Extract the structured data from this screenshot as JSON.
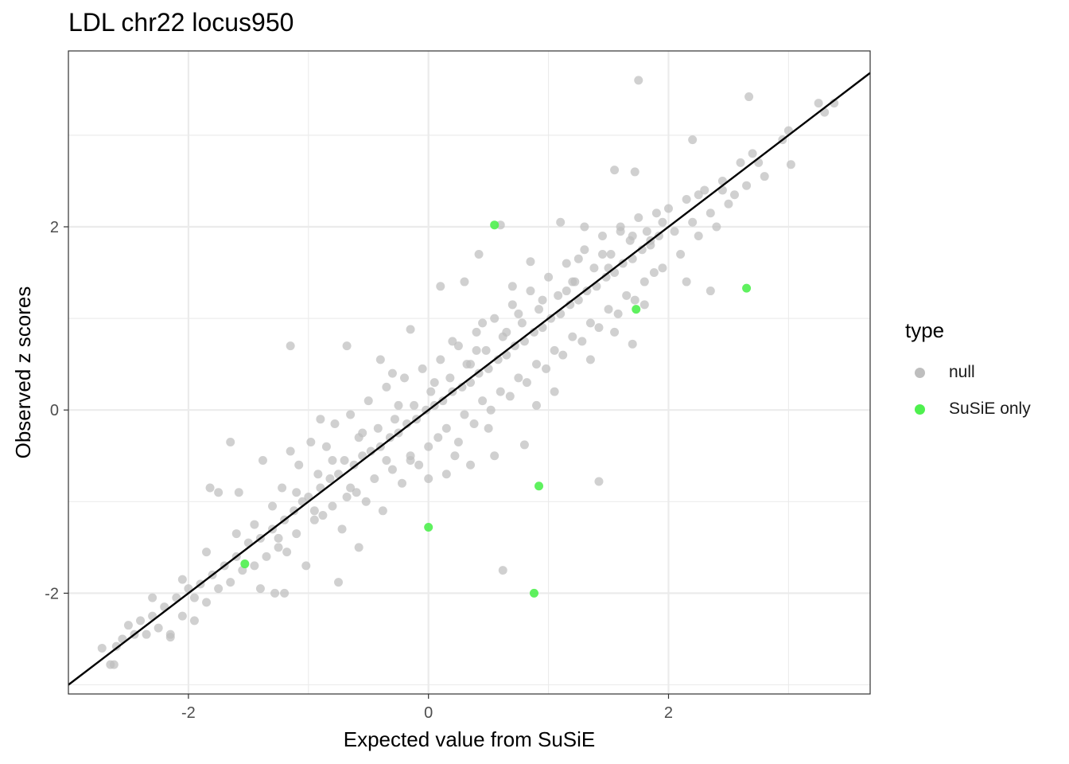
{
  "chart_data": {
    "type": "scatter",
    "title": "LDL chr22 locus950",
    "xlabel": "Expected value from SuSiE",
    "ylabel": "Observed z scores",
    "xlim": [
      -3.0,
      3.68
    ],
    "ylim": [
      -3.1,
      3.92
    ],
    "x_ticks": [
      -2,
      0,
      2
    ],
    "y_ticks": [
      -2,
      0,
      2
    ],
    "grid": true,
    "reference_line": {
      "slope": 1,
      "intercept": 0,
      "color": "#000000"
    },
    "legend": {
      "title": "type",
      "position": "right",
      "items": [
        {
          "label": "null",
          "color": "#bebebe"
        },
        {
          "label": "SuSiE only",
          "color": "#4ef04e"
        }
      ]
    },
    "series": [
      {
        "name": "null",
        "color": "#bebebe",
        "points": [
          [
            -2.72,
            -2.6
          ],
          [
            -2.65,
            -2.78
          ],
          [
            -2.62,
            -2.78
          ],
          [
            -2.6,
            -2.58
          ],
          [
            -2.55,
            -2.5
          ],
          [
            -2.45,
            -2.45
          ],
          [
            -2.4,
            -2.3
          ],
          [
            -2.35,
            -2.45
          ],
          [
            -2.3,
            -2.25
          ],
          [
            -2.25,
            -2.38
          ],
          [
            -2.2,
            -2.15
          ],
          [
            -2.15,
            -2.45
          ],
          [
            -2.1,
            -2.05
          ],
          [
            -2.05,
            -2.25
          ],
          [
            -2.0,
            -1.95
          ],
          [
            -1.95,
            -2.3
          ],
          [
            -1.9,
            -1.9
          ],
          [
            -1.85,
            -2.1
          ],
          [
            -1.8,
            -1.8
          ],
          [
            -1.75,
            -1.95
          ],
          [
            -1.7,
            -1.7
          ],
          [
            -1.65,
            -1.88
          ],
          [
            -1.6,
            -1.6
          ],
          [
            -1.58,
            -0.9
          ],
          [
            -1.55,
            -1.75
          ],
          [
            -1.5,
            -1.45
          ],
          [
            -1.45,
            -1.7
          ],
          [
            -1.4,
            -1.4
          ],
          [
            -1.38,
            -0.55
          ],
          [
            -1.35,
            -1.6
          ],
          [
            -1.3,
            -1.3
          ],
          [
            -1.28,
            -2.0
          ],
          [
            -1.25,
            -1.5
          ],
          [
            -1.22,
            -0.85
          ],
          [
            -1.2,
            -1.2
          ],
          [
            -1.18,
            -1.55
          ],
          [
            -1.15,
            -0.45
          ],
          [
            -1.12,
            -1.1
          ],
          [
            -1.1,
            -1.35
          ],
          [
            -1.08,
            -0.6
          ],
          [
            -1.05,
            -1.0
          ],
          [
            -1.02,
            -1.7
          ],
          [
            -1.0,
            -0.95
          ],
          [
            -0.98,
            -0.35
          ],
          [
            -0.95,
            -1.2
          ],
          [
            -0.92,
            -0.7
          ],
          [
            -0.9,
            -0.85
          ],
          [
            -0.88,
            -1.15
          ],
          [
            -0.85,
            -0.4
          ],
          [
            -0.82,
            -0.75
          ],
          [
            -0.8,
            -1.05
          ],
          [
            -0.78,
            -0.15
          ],
          [
            -0.75,
            -0.7
          ],
          [
            -0.72,
            -1.3
          ],
          [
            -0.7,
            -0.55
          ],
          [
            -0.68,
            -0.95
          ],
          [
            -0.65,
            -0.05
          ],
          [
            -0.62,
            -0.6
          ],
          [
            -0.6,
            -0.9
          ],
          [
            -0.58,
            -0.3
          ],
          [
            -0.55,
            -0.5
          ],
          [
            -0.52,
            -1.0
          ],
          [
            -0.5,
            0.1
          ],
          [
            -0.48,
            -0.45
          ],
          [
            -0.45,
            -0.75
          ],
          [
            -0.42,
            -0.2
          ],
          [
            -0.4,
            -0.4
          ],
          [
            -0.38,
            -1.1
          ],
          [
            -0.35,
            0.25
          ],
          [
            -0.32,
            -0.3
          ],
          [
            -0.3,
            -0.65
          ],
          [
            -0.28,
            -0.1
          ],
          [
            -0.25,
            -0.25
          ],
          [
            -0.22,
            -0.8
          ],
          [
            -0.2,
            0.35
          ],
          [
            -0.18,
            -0.15
          ],
          [
            -0.15,
            -0.5
          ],
          [
            -0.12,
            0.05
          ],
          [
            -0.1,
            -0.1
          ],
          [
            -0.08,
            -0.6
          ],
          [
            -0.05,
            0.45
          ],
          [
            -0.02,
            0.0
          ],
          [
            0.0,
            -0.4
          ],
          [
            0.02,
            0.2
          ],
          [
            0.05,
            0.05
          ],
          [
            0.08,
            -0.3
          ],
          [
            0.1,
            0.55
          ],
          [
            0.12,
            0.1
          ],
          [
            0.15,
            -0.2
          ],
          [
            0.18,
            0.35
          ],
          [
            0.2,
            0.2
          ],
          [
            0.22,
            -0.5
          ],
          [
            0.25,
            0.7
          ],
          [
            0.28,
            0.25
          ],
          [
            0.3,
            -0.05
          ],
          [
            0.32,
            0.5
          ],
          [
            0.35,
            0.3
          ],
          [
            0.38,
            -0.15
          ],
          [
            0.4,
            0.85
          ],
          [
            0.42,
            0.4
          ],
          [
            0.45,
            0.1
          ],
          [
            0.48,
            0.65
          ],
          [
            0.5,
            0.45
          ],
          [
            0.52,
            0.0
          ],
          [
            0.55,
            1.0
          ],
          [
            0.58,
            0.55
          ],
          [
            0.6,
            0.2
          ],
          [
            0.62,
            0.8
          ],
          [
            0.65,
            0.6
          ],
          [
            0.68,
            0.15
          ],
          [
            0.7,
            1.15
          ],
          [
            0.72,
            0.7
          ],
          [
            0.75,
            0.35
          ],
          [
            0.78,
            0.95
          ],
          [
            0.8,
            0.75
          ],
          [
            0.82,
            0.3
          ],
          [
            0.85,
            1.3
          ],
          [
            0.88,
            0.85
          ],
          [
            0.9,
            0.5
          ],
          [
            0.92,
            1.1
          ],
          [
            0.95,
            0.9
          ],
          [
            0.98,
            0.45
          ],
          [
            1.0,
            1.45
          ],
          [
            1.02,
            1.0
          ],
          [
            1.05,
            0.65
          ],
          [
            1.08,
            1.25
          ],
          [
            1.1,
            1.05
          ],
          [
            1.12,
            0.6
          ],
          [
            1.15,
            1.6
          ],
          [
            1.18,
            1.15
          ],
          [
            1.2,
            0.8
          ],
          [
            1.22,
            1.4
          ],
          [
            1.25,
            1.2
          ],
          [
            1.28,
            0.75
          ],
          [
            1.3,
            1.75
          ],
          [
            1.32,
            1.3
          ],
          [
            1.35,
            0.95
          ],
          [
            1.38,
            1.55
          ],
          [
            1.4,
            1.35
          ],
          [
            1.42,
            0.9
          ],
          [
            1.45,
            1.9
          ],
          [
            1.48,
            1.45
          ],
          [
            1.5,
            1.1
          ],
          [
            1.52,
            1.7
          ],
          [
            1.55,
            1.5
          ],
          [
            1.58,
            1.05
          ],
          [
            1.6,
            2.0
          ],
          [
            1.62,
            1.6
          ],
          [
            1.65,
            1.25
          ],
          [
            1.68,
            1.85
          ],
          [
            1.7,
            1.65
          ],
          [
            1.72,
            1.2
          ],
          [
            1.75,
            2.1
          ],
          [
            1.78,
            1.75
          ],
          [
            1.8,
            1.4
          ],
          [
            1.82,
            1.95
          ],
          [
            1.85,
            1.8
          ],
          [
            1.88,
            1.5
          ],
          [
            1.9,
            2.15
          ],
          [
            1.92,
            1.9
          ],
          [
            1.95,
            1.55
          ],
          [
            2.0,
            2.2
          ],
          [
            2.05,
            1.95
          ],
          [
            2.1,
            1.7
          ],
          [
            2.15,
            2.3
          ],
          [
            2.2,
            2.05
          ],
          [
            2.25,
            1.9
          ],
          [
            2.3,
            2.4
          ],
          [
            2.35,
            2.15
          ],
          [
            2.4,
            2.0
          ],
          [
            2.45,
            2.5
          ],
          [
            2.5,
            2.25
          ],
          [
            2.55,
            2.35
          ],
          [
            2.6,
            2.7
          ],
          [
            2.65,
            2.45
          ],
          [
            2.7,
            2.8
          ],
          [
            2.75,
            2.7
          ],
          [
            2.8,
            2.55
          ],
          [
            2.95,
            2.95
          ],
          [
            3.0,
            3.05
          ],
          [
            3.02,
            2.68
          ],
          [
            3.25,
            3.35
          ],
          [
            3.3,
            3.25
          ],
          [
            3.38,
            3.35
          ],
          [
            1.75,
            3.6
          ],
          [
            2.67,
            3.42
          ],
          [
            2.2,
            2.95
          ],
          [
            1.55,
            2.62
          ],
          [
            1.72,
            2.6
          ],
          [
            0.6,
            2.02
          ],
          [
            0.42,
            1.7
          ],
          [
            0.1,
            1.35
          ],
          [
            -1.15,
            0.7
          ],
          [
            -0.68,
            0.7
          ],
          [
            -1.82,
            -0.85
          ],
          [
            -1.75,
            -0.9
          ],
          [
            -1.65,
            -0.35
          ],
          [
            -0.58,
            -1.5
          ],
          [
            -0.75,
            -1.88
          ],
          [
            -1.4,
            -1.95
          ],
          [
            -1.2,
            -2.0
          ],
          [
            -2.15,
            -2.48
          ],
          [
            0.62,
            -1.75
          ],
          [
            1.42,
            -0.78
          ],
          [
            1.7,
            0.72
          ],
          [
            0.8,
            -0.38
          ],
          [
            2.15,
            1.4
          ],
          [
            2.35,
            1.3
          ],
          [
            -0.15,
            0.88
          ],
          [
            0.3,
            1.4
          ],
          [
            0.85,
            1.62
          ],
          [
            1.1,
            2.05
          ],
          [
            1.3,
            2.0
          ],
          [
            -0.4,
            0.55
          ],
          [
            0.2,
            0.75
          ],
          [
            0.7,
            1.35
          ],
          [
            -0.9,
            -0.1
          ],
          [
            -0.3,
            0.4
          ],
          [
            0.45,
            0.95
          ],
          [
            1.25,
            1.65
          ],
          [
            1.6,
            1.95
          ],
          [
            -2.05,
            -1.85
          ],
          [
            -1.95,
            -2.05
          ],
          [
            -1.45,
            -1.25
          ],
          [
            -1.1,
            -0.9
          ],
          [
            -0.8,
            -0.55
          ],
          [
            -0.55,
            -0.25
          ],
          [
            -0.25,
            0.05
          ],
          [
            0.05,
            0.3
          ],
          [
            0.35,
            0.5
          ],
          [
            0.65,
            0.85
          ],
          [
            0.95,
            1.2
          ],
          [
            1.2,
            1.4
          ],
          [
            1.45,
            1.7
          ],
          [
            1.7,
            1.9
          ],
          [
            1.95,
            2.05
          ],
          [
            2.25,
            2.35
          ],
          [
            2.45,
            2.4
          ],
          [
            0.55,
            -0.5
          ],
          [
            0.35,
            -0.6
          ],
          [
            0.15,
            -0.7
          ],
          [
            0.0,
            -0.75
          ],
          [
            -0.15,
            -0.55
          ],
          [
            0.25,
            -0.35
          ],
          [
            0.5,
            -0.2
          ],
          [
            0.9,
            0.05
          ],
          [
            1.05,
            0.2
          ],
          [
            1.35,
            0.55
          ],
          [
            1.55,
            0.85
          ],
          [
            1.8,
            1.15
          ],
          [
            -1.3,
            -1.05
          ],
          [
            -1.6,
            -1.35
          ],
          [
            -1.85,
            -1.55
          ],
          [
            -2.3,
            -2.05
          ],
          [
            -2.5,
            -2.35
          ],
          [
            -0.35,
            -0.55
          ],
          [
            -0.65,
            -0.85
          ],
          [
            -0.95,
            -1.1
          ],
          [
            -1.25,
            -1.4
          ],
          [
            0.4,
            0.65
          ],
          [
            0.75,
            1.05
          ],
          [
            1.15,
            1.3
          ],
          [
            1.5,
            1.55
          ],
          [
            1.85,
            1.85
          ]
        ]
      },
      {
        "name": "SuSiE only",
        "color": "#4ef04e",
        "points": [
          [
            0.55,
            2.02
          ],
          [
            2.65,
            1.33
          ],
          [
            1.73,
            1.1
          ],
          [
            0.92,
            -0.83
          ],
          [
            0.0,
            -1.28
          ],
          [
            0.88,
            -2.0
          ],
          [
            -1.53,
            -1.68
          ]
        ]
      }
    ]
  }
}
